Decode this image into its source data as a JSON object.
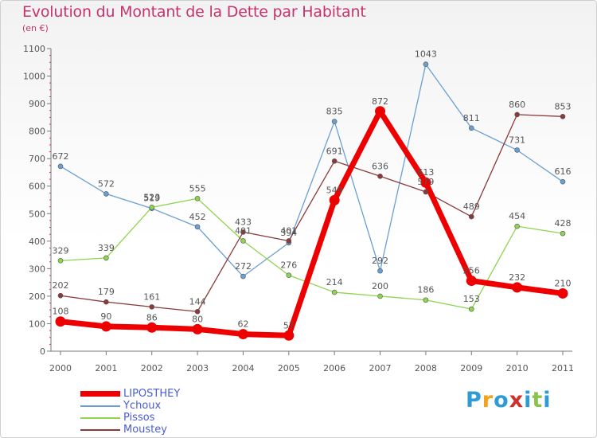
{
  "title": "Evolution du Montant de la Dette par Habitant",
  "subtitle": "(en €)",
  "logo": {
    "text": "Proxiti",
    "colors": [
      "#2e9ad6",
      "#f2a21b",
      "#2e9ad6",
      "#d0302a",
      "#2e9ad6",
      "#8bc34a",
      "#2e9ad6"
    ]
  },
  "chart_data": {
    "type": "line",
    "title": "Evolution du Montant de la Dette par Habitant",
    "subtitle": "(en €)",
    "xlabel": "",
    "ylabel": "",
    "x": [
      "2000",
      "2001",
      "2002",
      "2003",
      "2004",
      "2005",
      "2006",
      "2007",
      "2008",
      "2009",
      "2010",
      "2011"
    ],
    "ylim": [
      0,
      1100
    ],
    "yticks": [
      0,
      100,
      200,
      300,
      400,
      500,
      600,
      700,
      800,
      900,
      1000,
      1100
    ],
    "grid": false,
    "legend_position": "bottom-left",
    "series": [
      {
        "name": "LIPOSTHEY",
        "color": "#ee0000",
        "values": [
          108,
          90,
          86,
          80,
          62,
          57,
          549,
          872,
          613,
          256,
          232,
          210
        ]
      },
      {
        "name": "Ychoux",
        "color": "#6a9fd3",
        "values": [
          672,
          572,
          519,
          452,
          272,
          394,
          835,
          292,
          1043,
          811,
          731,
          616
        ]
      },
      {
        "name": "Pissos",
        "color": "#8ed44f",
        "values": [
          329,
          339,
          523,
          555,
          401,
          276,
          214,
          200,
          186,
          153,
          454,
          428
        ]
      },
      {
        "name": "Moustey",
        "color": "#8b3a3a",
        "values": [
          202,
          179,
          161,
          144,
          433,
          401,
          691,
          636,
          579,
          489,
          860,
          853
        ]
      }
    ]
  }
}
